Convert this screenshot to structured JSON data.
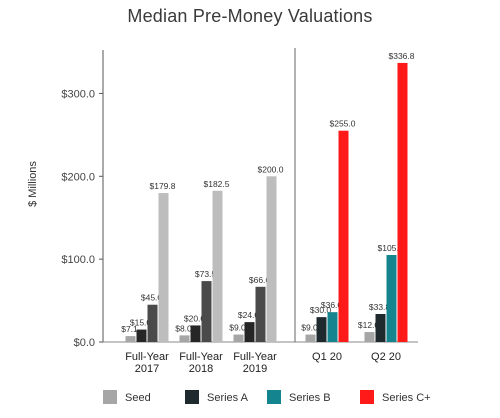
{
  "chart_data": {
    "type": "bar",
    "title": "Median Pre-Money Valuations",
    "ylabel": "$ Millions",
    "xlabel": "",
    "ylim": [
      0,
      350
    ],
    "yticks": [
      0,
      100,
      200,
      300
    ],
    "ytick_labels": [
      "$0.0",
      "$100.0",
      "$200.0",
      "$300.0"
    ],
    "categories": [
      "Full-Year 2017",
      "Full-Year 2018",
      "Full-Year 2019",
      "Q1 20",
      "Q2 20"
    ],
    "category_labels": [
      [
        "Full-Year",
        "2017"
      ],
      [
        "Full-Year",
        "2018"
      ],
      [
        "Full-Year",
        "2019"
      ],
      [
        "Q1 20"
      ],
      [
        "Q2 20"
      ]
    ],
    "divider_after_category": 2,
    "grid": false,
    "legend_position": "bottom",
    "series": [
      {
        "name": "Seed",
        "color": "#a6a6a6",
        "values": [
          7.1,
          8.0,
          9.0,
          9.0,
          12.0
        ],
        "labels": [
          "$7.1",
          "$8.0",
          "$9.0",
          "$9.0",
          "$12.0"
        ]
      },
      {
        "name": "Series A",
        "color": "#1f2a2e",
        "values": [
          15.0,
          20.0,
          24.0,
          30.0,
          33.8
        ],
        "labels": [
          "$15.0",
          "$20.0",
          "$24.0",
          "$30.0",
          "$33.8"
        ]
      },
      {
        "name": "Series B",
        "color": "#14848f",
        "values": [
          45.0,
          73.5,
          66.6,
          36.0,
          105.0
        ],
        "labels": [
          "$45.0",
          "$73.5",
          "$66.6",
          "$36.0",
          "$105.0"
        ]
      },
      {
        "name": "Series C+",
        "color": "#ff1a1a",
        "values": [
          179.8,
          182.5,
          200.0,
          255.0,
          336.8
        ],
        "labels": [
          "$179.8",
          "$182.5",
          "$200.0",
          "$255.0",
          "$336.8"
        ]
      }
    ],
    "series_style_by_category": [
      [
        "#a6a6a6",
        "#262626",
        "#4a4a4a",
        "#bdbdbd"
      ],
      [
        "#a6a6a6",
        "#262626",
        "#4a4a4a",
        "#bdbdbd"
      ],
      [
        "#a6a6a6",
        "#262626",
        "#4a4a4a",
        "#bdbdbd"
      ],
      [
        "#a6a6a6",
        "#1f2a2e",
        "#14848f",
        "#ff1a1a"
      ],
      [
        "#a6a6a6",
        "#1f2a2e",
        "#14848f",
        "#ff1a1a"
      ]
    ]
  }
}
